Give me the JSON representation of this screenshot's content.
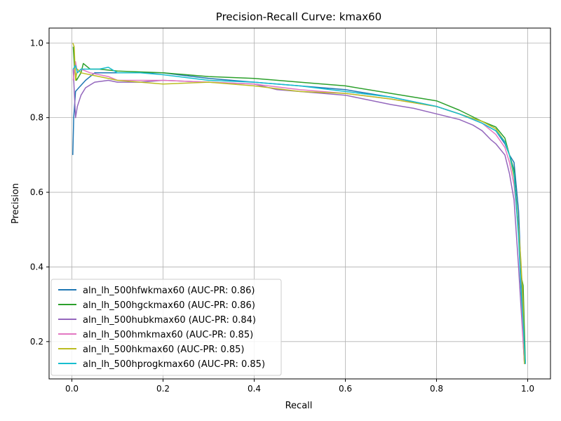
{
  "chart_data": {
    "type": "line",
    "title": "Precision-Recall Curve: kmax60",
    "xlabel": "Recall",
    "ylabel": "Precision",
    "xlim": [
      -0.05,
      1.05
    ],
    "ylim": [
      0.1,
      1.04
    ],
    "xticks": [
      0.0,
      0.2,
      0.4,
      0.6,
      0.8,
      1.0
    ],
    "xtick_labels": [
      "0.0",
      "0.2",
      "0.4",
      "0.6",
      "0.8",
      "1.0"
    ],
    "yticks": [
      0.2,
      0.4,
      0.6,
      0.8,
      1.0
    ],
    "ytick_labels": [
      "0.2",
      "0.4",
      "0.6",
      "0.8",
      "1.0"
    ],
    "grid": true,
    "legend_position": "lower-left",
    "series": [
      {
        "name": "aln_lh_500hfwkmax60 (AUC-PR: 0.86)",
        "color": "#1f77b4",
        "x": [
          0.002,
          0.004,
          0.008,
          0.015,
          0.03,
          0.05,
          0.1,
          0.2,
          0.3,
          0.4,
          0.5,
          0.6,
          0.7,
          0.8,
          0.85,
          0.9,
          0.93,
          0.95,
          0.96,
          0.97,
          0.98,
          0.985,
          0.99,
          0.993
        ],
        "y": [
          0.7,
          0.8,
          0.87,
          0.88,
          0.9,
          0.92,
          0.92,
          0.92,
          0.905,
          0.895,
          0.885,
          0.875,
          0.855,
          0.83,
          0.81,
          0.785,
          0.765,
          0.73,
          0.7,
          0.68,
          0.55,
          0.4,
          0.25,
          0.14
        ]
      },
      {
        "name": "aln_lh_500hgckmax60 (AUC-PR: 0.86)",
        "color": "#2ca02c",
        "x": [
          0.003,
          0.006,
          0.01,
          0.02,
          0.025,
          0.04,
          0.06,
          0.1,
          0.2,
          0.3,
          0.4,
          0.5,
          0.6,
          0.7,
          0.8,
          0.85,
          0.9,
          0.93,
          0.95,
          0.96,
          0.97,
          0.98,
          0.985,
          0.99,
          0.995
        ],
        "y": [
          0.99,
          0.93,
          0.9,
          0.92,
          0.945,
          0.93,
          0.93,
          0.925,
          0.92,
          0.91,
          0.905,
          0.895,
          0.885,
          0.865,
          0.845,
          0.82,
          0.79,
          0.775,
          0.745,
          0.7,
          0.66,
          0.5,
          0.38,
          0.35,
          0.14
        ]
      },
      {
        "name": "aln_lh_500hubkmax60 (AUC-PR: 0.84)",
        "color": "#9467bd",
        "x": [
          0.003,
          0.008,
          0.012,
          0.02,
          0.03,
          0.05,
          0.08,
          0.1,
          0.15,
          0.2,
          0.3,
          0.4,
          0.45,
          0.5,
          0.6,
          0.7,
          0.75,
          0.8,
          0.85,
          0.88,
          0.9,
          0.92,
          0.93,
          0.95,
          0.96,
          0.97,
          0.98,
          0.985,
          0.99,
          0.993
        ],
        "y": [
          0.93,
          0.8,
          0.83,
          0.86,
          0.88,
          0.895,
          0.9,
          0.895,
          0.895,
          0.9,
          0.895,
          0.89,
          0.875,
          0.87,
          0.86,
          0.835,
          0.825,
          0.81,
          0.795,
          0.78,
          0.765,
          0.74,
          0.73,
          0.7,
          0.65,
          0.58,
          0.4,
          0.3,
          0.2,
          0.14
        ]
      },
      {
        "name": "aln_lh_500hmkmax60 (AUC-PR: 0.85)",
        "color": "#e377c2",
        "x": [
          0.003,
          0.008,
          0.012,
          0.02,
          0.04,
          0.08,
          0.1,
          0.2,
          0.3,
          0.4,
          0.5,
          0.6,
          0.7,
          0.8,
          0.85,
          0.9,
          0.93,
          0.95,
          0.96,
          0.97,
          0.98,
          0.985,
          0.99,
          0.993
        ],
        "y": [
          0.9,
          0.95,
          0.92,
          0.93,
          0.92,
          0.91,
          0.9,
          0.9,
          0.895,
          0.89,
          0.875,
          0.865,
          0.85,
          0.83,
          0.81,
          0.785,
          0.755,
          0.72,
          0.68,
          0.62,
          0.5,
          0.35,
          0.2,
          0.14
        ]
      },
      {
        "name": "aln_lh_500hkmax60 (AUC-PR: 0.85)",
        "color": "#bcbd22",
        "x": [
          0.002,
          0.005,
          0.008,
          0.012,
          0.02,
          0.04,
          0.06,
          0.1,
          0.2,
          0.3,
          0.4,
          0.5,
          0.6,
          0.7,
          0.8,
          0.85,
          0.9,
          0.93,
          0.95,
          0.96,
          0.97,
          0.98,
          0.985,
          0.99,
          0.993
        ],
        "y": [
          1.0,
          0.99,
          0.9,
          0.93,
          0.92,
          0.915,
          0.91,
          0.9,
          0.89,
          0.895,
          0.885,
          0.87,
          0.865,
          0.85,
          0.83,
          0.81,
          0.79,
          0.77,
          0.735,
          0.7,
          0.64,
          0.5,
          0.42,
          0.3,
          0.14
        ]
      },
      {
        "name": "aln_lh_500hprogkmax60 (AUC-PR: 0.85)",
        "color": "#17becf",
        "x": [
          0.003,
          0.008,
          0.012,
          0.02,
          0.04,
          0.06,
          0.08,
          0.1,
          0.15,
          0.2,
          0.3,
          0.4,
          0.5,
          0.6,
          0.7,
          0.8,
          0.85,
          0.9,
          0.93,
          0.95,
          0.96,
          0.97,
          0.98,
          0.985,
          0.99,
          0.995
        ],
        "y": [
          0.93,
          0.94,
          0.92,
          0.93,
          0.93,
          0.93,
          0.935,
          0.92,
          0.92,
          0.915,
          0.9,
          0.895,
          0.885,
          0.87,
          0.855,
          0.83,
          0.81,
          0.785,
          0.765,
          0.735,
          0.7,
          0.65,
          0.48,
          0.35,
          0.25,
          0.14
        ]
      }
    ]
  }
}
